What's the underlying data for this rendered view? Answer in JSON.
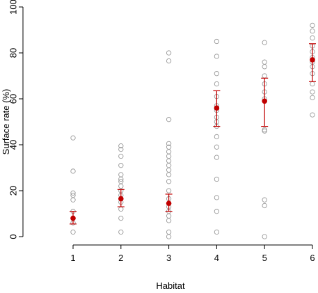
{
  "chart_data": {
    "type": "scatter",
    "title": "",
    "xlabel": "Habitat",
    "ylabel": "Surface rate (%)",
    "x_ticks": [
      1,
      2,
      3,
      4,
      5,
      6
    ],
    "x_tick_labels": [
      "1",
      "2",
      "3",
      "4",
      "5",
      "6"
    ],
    "y_ticks": [
      0,
      20,
      40,
      60,
      80,
      100
    ],
    "y_tick_labels": [
      "0",
      "20",
      "40",
      "60",
      "80",
      "100"
    ],
    "xlim": [
      0.9,
      6.1
    ],
    "ylim": [
      0,
      100
    ],
    "grid": false,
    "legend": null,
    "series": [
      {
        "role": "observations",
        "marker": "open-circle",
        "color": "#9a9a9a",
        "groups": [
          {
            "x": 1,
            "y": [
              43,
              28.5,
              19,
              18,
              16,
              11,
              8,
              6,
              2
            ]
          },
          {
            "x": 2,
            "y": [
              39.5,
              38,
              35,
              31,
              27,
              25,
              24,
              22,
              20,
              18,
              15,
              12,
              8,
              2
            ]
          },
          {
            "x": 3,
            "y": [
              80,
              76.5,
              51,
              40.5,
              39,
              37,
              35,
              33,
              31,
              29,
              27,
              24,
              20,
              16.5,
              13,
              11,
              9,
              7,
              2,
              0
            ]
          },
          {
            "x": 4,
            "y": [
              85,
              78.5,
              71,
              66.5,
              61,
              57,
              55,
              52,
              50,
              48,
              43.5,
              39,
              34.5,
              25,
              17,
              11,
              2
            ]
          },
          {
            "x": 5,
            "y": [
              84.5,
              76,
              74,
              70,
              66.5,
              63,
              60,
              46.5,
              46,
              16,
              13.5,
              0
            ]
          },
          {
            "x": 6,
            "y": [
              92,
              89.5,
              86.5,
              83,
              80.5,
              78,
              76,
              74,
              71,
              66.5,
              63,
              60.5,
              53
            ]
          }
        ]
      },
      {
        "role": "mean",
        "marker": "filled-circle",
        "color": "#c00000",
        "points": [
          {
            "x": 1,
            "y": 8,
            "err_low": 5.5,
            "err_high": 11
          },
          {
            "x": 2,
            "y": 16.5,
            "err_low": 13,
            "err_high": 20.5
          },
          {
            "x": 3,
            "y": 14.5,
            "err_low": 11,
            "err_high": 18.5
          },
          {
            "x": 4,
            "y": 56,
            "err_low": 48,
            "err_high": 63.5
          },
          {
            "x": 5,
            "y": 59,
            "err_low": 48,
            "err_high": 69
          },
          {
            "x": 6,
            "y": 77,
            "err_low": 67.5,
            "err_high": 84
          }
        ]
      }
    ]
  }
}
